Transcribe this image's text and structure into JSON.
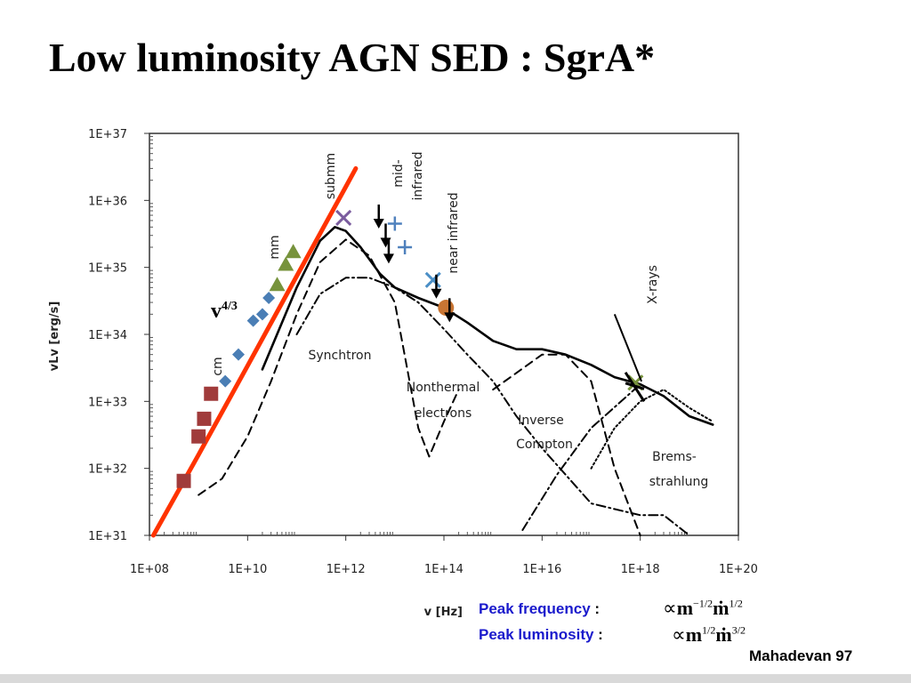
{
  "slide": {
    "title": "Low luminosity AGN SED : SgrA*",
    "credit": "Mahadevan 97",
    "slope_label": "v",
    "slope_exp": "4/3",
    "peak_freq_label": "Peak frequency",
    "peak_freq_colon": ":",
    "peak_lum_label": "Peak luminosity",
    "peak_lum_colon": ":",
    "prop": "∝",
    "m": "m",
    "mdot": "ṁ",
    "exp_m_freq": "−1/2",
    "exp_mdot_freq": "1/2",
    "exp_m_lum": "1/2",
    "exp_mdot_lum": "3/2"
  },
  "chart_data": {
    "type": "line",
    "x_scale": "log",
    "y_scale": "log",
    "xlabel": "v [Hz]",
    "ylabel": "vLv [erg/s]",
    "xlim": [
      100000000.0,
      1e+20
    ],
    "ylim": [
      1e+31,
      1e+37
    ],
    "x_ticks": [
      "1E+08",
      "1E+10",
      "1E+12",
      "1E+14",
      "1E+16",
      "1E+18",
      "1E+20"
    ],
    "y_ticks": [
      "1E+31",
      "1E+32",
      "1E+33",
      "1E+34",
      "1E+35",
      "1E+36",
      "1E+37"
    ],
    "grid": false,
    "band_labels": [
      "cm",
      "mm",
      "submm",
      "mid-",
      "infrared",
      "near infrared",
      "X-rays"
    ],
    "component_labels": [
      "Synchtron",
      "Nonthermal",
      "electrons",
      "Inverse",
      "Compton",
      "Brems-",
      "strahlung"
    ],
    "series": [
      {
        "style": "solid",
        "color": "#000000",
        "x": [
          20000000000.0,
          100000000000.0,
          300000000000.0,
          600000000000.0,
          1000000000000.0,
          2000000000000.0,
          5000000000000.0,
          10000000000000.0,
          30000000000000.0,
          100000000000000.0,
          300000000000000.0,
          1000000000000000.0,
          3000000000000000.0,
          1e+16,
          3e+16,
          1e+17,
          3e+17,
          1e+18,
          3e+18,
          1e+19,
          3e+19
        ],
        "y": [
          3e+33,
          5e+34,
          2.5e+35,
          4e+35,
          3.5e+35,
          2e+35,
          8e+34,
          5e+34,
          3.5e+34,
          2.5e+34,
          1.5e+34,
          8e+33,
          6e+33,
          6e+33,
          5e+33,
          3.5e+33,
          2.3e+33,
          1.8e+33,
          1.2e+33,
          6e+32,
          4.5e+32
        ]
      },
      {
        "style": "dashed",
        "color": "#000000",
        "x": [
          1000000000.0,
          3000000000.0,
          10000000000.0,
          30000000000.0,
          100000000000.0,
          300000000000.0,
          1000000000000.0,
          3000000000000.0,
          10000000000000.0,
          30000000000000.0,
          50000000000000.0,
          100000000000000.0,
          200000000000000.0
        ],
        "y": [
          4e+31,
          7e+31,
          3e+32,
          2e+33,
          2e+34,
          1.2e+35,
          2.6e+35,
          1.5e+35,
          3e+34,
          4e+32,
          1.5e+32,
          5e+32,
          1.5e+33
        ]
      },
      {
        "style": "dashed",
        "color": "#000000",
        "x": [
          1000000000000000.0,
          1e+16,
          3e+16,
          1e+17,
          3e+17,
          1e+18
        ],
        "y": [
          1.5e+33,
          5e+33,
          5e+33,
          2e+33,
          1e+32,
          1e+31
        ]
      },
      {
        "style": "dashdot",
        "color": "#000000",
        "x": [
          100000000000.0,
          300000000000.0,
          1000000000000.0,
          3000000000000.0,
          10000000000000.0,
          30000000000000.0,
          100000000000000.0,
          300000000000000.0,
          1000000000000000.0,
          3000000000000000.0,
          1e+16,
          1e+17,
          1e+18,
          3e+18,
          1e+19
        ],
        "y": [
          1e+34,
          4e+34,
          7e+34,
          7e+34,
          5e+34,
          3e+34,
          1.2e+34,
          5e+33,
          2e+33,
          6e+32,
          2e+32,
          3e+31,
          2e+31,
          2e+31,
          1e+31
        ]
      },
      {
        "style": "dashdot",
        "color": "#000000",
        "x": [
          4000000000000000.0,
          2e+16,
          1e+17,
          1e+18,
          3e+18
        ],
        "y": [
          1.2e+31,
          8e+31,
          4e+32,
          1.8e+33,
          1.2e+33
        ]
      },
      {
        "style": "dotted",
        "color": "#000000",
        "x": [
          1e+17,
          3e+17,
          1e+18,
          3e+18,
          1e+19,
          3e+19
        ],
        "y": [
          1e+32,
          4e+32,
          1e+33,
          1.5e+33,
          8e+32,
          5e+32
        ]
      },
      {
        "style": "solid",
        "color": "#ff3300",
        "x": [
          120000000.0,
          1000000000.0,
          10000000000.0,
          100000000000.0,
          1000000000000.0,
          1600000000000.0
        ],
        "y": [
          1e+31,
          1.6e+32,
          3.4e+33,
          7.4e+34,
          1.6e+36,
          3e+36
        ]
      }
    ],
    "markers": [
      {
        "shape": "square",
        "color": "#a03b3b",
        "x": [
          500000000.0,
          1000000000.0,
          1300000000.0,
          1800000000.0
        ],
        "y": [
          6.5e+31,
          3e+32,
          5.5e+32,
          1.3e+33
        ]
      },
      {
        "shape": "diamond",
        "color": "#4a7eb5",
        "x": [
          3500000000.0,
          6500000000.0,
          13000000000.0,
          20000000000.0,
          27000000000.0
        ],
        "y": [
          2e+33,
          5e+33,
          1.6e+34,
          2e+34,
          3.5e+34
        ]
      },
      {
        "shape": "triangle",
        "color": "#77933c",
        "x": [
          40000000000.0,
          60000000000.0,
          85000000000.0
        ],
        "y": [
          5.5e+34,
          1.1e+35,
          1.7e+35
        ]
      },
      {
        "shape": "x",
        "color": "#7a5c9e",
        "x": [
          900000000000.0
        ],
        "y": [
          5.5e+35
        ]
      },
      {
        "shape": "plus",
        "color": "#4f81bd",
        "x": [
          10000000000000.0,
          16000000000000.0
        ],
        "y": [
          4.5e+35,
          2e+35
        ]
      },
      {
        "shape": "x",
        "color": "#4a8ec6",
        "x": [
          60000000000000.0
        ],
        "y": [
          6.5e+34
        ]
      },
      {
        "shape": "circle",
        "color": "#c87533",
        "x": [
          110000000000000.0
        ],
        "y": [
          2.5e+34
        ]
      },
      {
        "shape": "arrow-down",
        "color": "#000000",
        "x": [
          4700000000000.0,
          6500000000000.0,
          7500000000000.0,
          70000000000000.0,
          130000000000000.0
        ],
        "y": [
          5e+35,
          2.6e+35,
          1.5e+35,
          4.5e+34,
          2e+34
        ]
      },
      {
        "shape": "x",
        "color": "#77933c",
        "x": [
          8e+17
        ],
        "y": [
          1.9e+33
        ]
      }
    ],
    "xray_bowtie": {
      "x": [
        5e+17,
        1.2e+18
      ],
      "y": [
        2.7e+33,
        1e+33
      ]
    }
  }
}
